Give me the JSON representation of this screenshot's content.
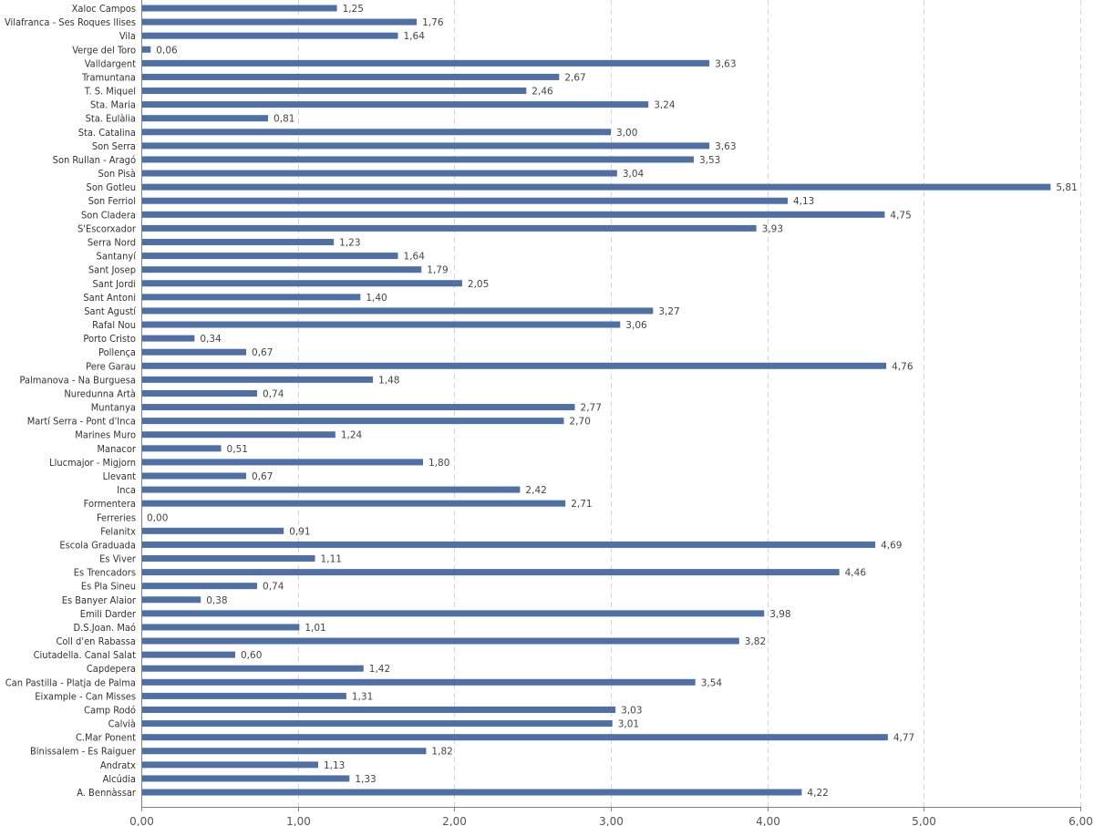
{
  "chart_data": {
    "type": "bar",
    "orientation": "horizontal",
    "title": "",
    "xlabel": "",
    "ylabel": "",
    "xlim": [
      0,
      6
    ],
    "grid": true,
    "bar_color": "#4f6fa5",
    "x_ticks": [
      {
        "value": 0,
        "label": "0,00"
      },
      {
        "value": 1,
        "label": "1,00"
      },
      {
        "value": 2,
        "label": "2,00"
      },
      {
        "value": 3,
        "label": "3,00"
      },
      {
        "value": 4,
        "label": "4,00"
      },
      {
        "value": 5,
        "label": "5,00"
      },
      {
        "value": 6,
        "label": "6,00"
      }
    ],
    "bars": [
      {
        "category": "Xaloc Campos",
        "value": 1.25,
        "label": "1,25"
      },
      {
        "category": "Vilafranca - Ses Roques llises",
        "value": 1.76,
        "label": "1,76"
      },
      {
        "category": "Vila",
        "value": 1.64,
        "label": "1,64"
      },
      {
        "category": "Verge del Toro",
        "value": 0.06,
        "label": "0,06"
      },
      {
        "category": "Valldargent",
        "value": 3.63,
        "label": "3,63"
      },
      {
        "category": "Tramuntana",
        "value": 2.67,
        "label": "2,67"
      },
      {
        "category": "T. S. Miquel",
        "value": 2.46,
        "label": "2,46"
      },
      {
        "category": "Sta. Maria",
        "value": 3.24,
        "label": "3,24"
      },
      {
        "category": "Sta. Eulàlia",
        "value": 0.81,
        "label": "0,81"
      },
      {
        "category": "Sta. Catalina",
        "value": 3.0,
        "label": "3,00"
      },
      {
        "category": "Son Serra",
        "value": 3.63,
        "label": "3,63"
      },
      {
        "category": "Son Rullan - Aragó",
        "value": 3.53,
        "label": "3,53"
      },
      {
        "category": "Son Pisà",
        "value": 3.04,
        "label": "3,04"
      },
      {
        "category": "Son Gotleu",
        "value": 5.81,
        "label": "5,81"
      },
      {
        "category": "Son Ferriol",
        "value": 4.13,
        "label": "4,13"
      },
      {
        "category": "Son Cladera",
        "value": 4.75,
        "label": "4,75"
      },
      {
        "category": "S'Escorxador",
        "value": 3.93,
        "label": "3,93"
      },
      {
        "category": "Serra Nord",
        "value": 1.23,
        "label": "1,23"
      },
      {
        "category": "Santanyí",
        "value": 1.64,
        "label": "1,64"
      },
      {
        "category": "Sant Josep",
        "value": 1.79,
        "label": "1,79"
      },
      {
        "category": "Sant Jordi",
        "value": 2.05,
        "label": "2,05"
      },
      {
        "category": "Sant Antoni",
        "value": 1.4,
        "label": "1,40"
      },
      {
        "category": "Sant Agustí",
        "value": 3.27,
        "label": "3,27"
      },
      {
        "category": "Rafal Nou",
        "value": 3.06,
        "label": "3,06"
      },
      {
        "category": "Porto Cristo",
        "value": 0.34,
        "label": "0,34"
      },
      {
        "category": "Pollença",
        "value": 0.67,
        "label": "0,67"
      },
      {
        "category": "Pere Garau",
        "value": 4.76,
        "label": "4,76"
      },
      {
        "category": "Palmanova - Na Burguesa",
        "value": 1.48,
        "label": "1,48"
      },
      {
        "category": "Nuredunna Artà",
        "value": 0.74,
        "label": "0,74"
      },
      {
        "category": "Muntanya",
        "value": 2.77,
        "label": "2,77"
      },
      {
        "category": "Martí Serra - Pont d'Inca",
        "value": 2.7,
        "label": "2,70"
      },
      {
        "category": "Marines Muro",
        "value": 1.24,
        "label": "1,24"
      },
      {
        "category": "Manacor",
        "value": 0.51,
        "label": "0,51"
      },
      {
        "category": "Llucmajor - Migjorn",
        "value": 1.8,
        "label": "1,80"
      },
      {
        "category": "Llevant",
        "value": 0.67,
        "label": "0,67"
      },
      {
        "category": "Inca",
        "value": 2.42,
        "label": "2,42"
      },
      {
        "category": "Formentera",
        "value": 2.71,
        "label": "2,71"
      },
      {
        "category": "Ferreries",
        "value": 0.0,
        "label": "0,00"
      },
      {
        "category": "Felanitx",
        "value": 0.91,
        "label": "0,91"
      },
      {
        "category": "Escola Graduada",
        "value": 4.69,
        "label": "4,69"
      },
      {
        "category": "Es Viver",
        "value": 1.11,
        "label": "1,11"
      },
      {
        "category": "Es Trencadors",
        "value": 4.46,
        "label": "4,46"
      },
      {
        "category": "Es Pla Sineu",
        "value": 0.74,
        "label": "0,74"
      },
      {
        "category": "Es Banyer Alaior",
        "value": 0.38,
        "label": "0,38"
      },
      {
        "category": "Emili Darder",
        "value": 3.98,
        "label": "3,98"
      },
      {
        "category": "D.S.Joan. Maó",
        "value": 1.01,
        "label": "1,01"
      },
      {
        "category": "Coll d'en Rabassa",
        "value": 3.82,
        "label": "3,82"
      },
      {
        "category": "Ciutadella. Canal Salat",
        "value": 0.6,
        "label": "0,60"
      },
      {
        "category": "Capdepera",
        "value": 1.42,
        "label": "1,42"
      },
      {
        "category": "Can Pastilla - Platja de Palma",
        "value": 3.54,
        "label": "3,54"
      },
      {
        "category": "Eixample - Can Misses",
        "value": 1.31,
        "label": "1,31"
      },
      {
        "category": "Camp Rodó",
        "value": 3.03,
        "label": "3,03"
      },
      {
        "category": "Calvià",
        "value": 3.01,
        "label": "3,01"
      },
      {
        "category": "C.Mar Ponent",
        "value": 4.77,
        "label": "4,77"
      },
      {
        "category": "Binissalem - Es Raiguer",
        "value": 1.82,
        "label": "1,82"
      },
      {
        "category": "Andratx",
        "value": 1.13,
        "label": "1,13"
      },
      {
        "category": "Alcúdia",
        "value": 1.33,
        "label": "1,33"
      },
      {
        "category": "A. Bennàssar",
        "value": 4.22,
        "label": "4,22"
      }
    ]
  }
}
